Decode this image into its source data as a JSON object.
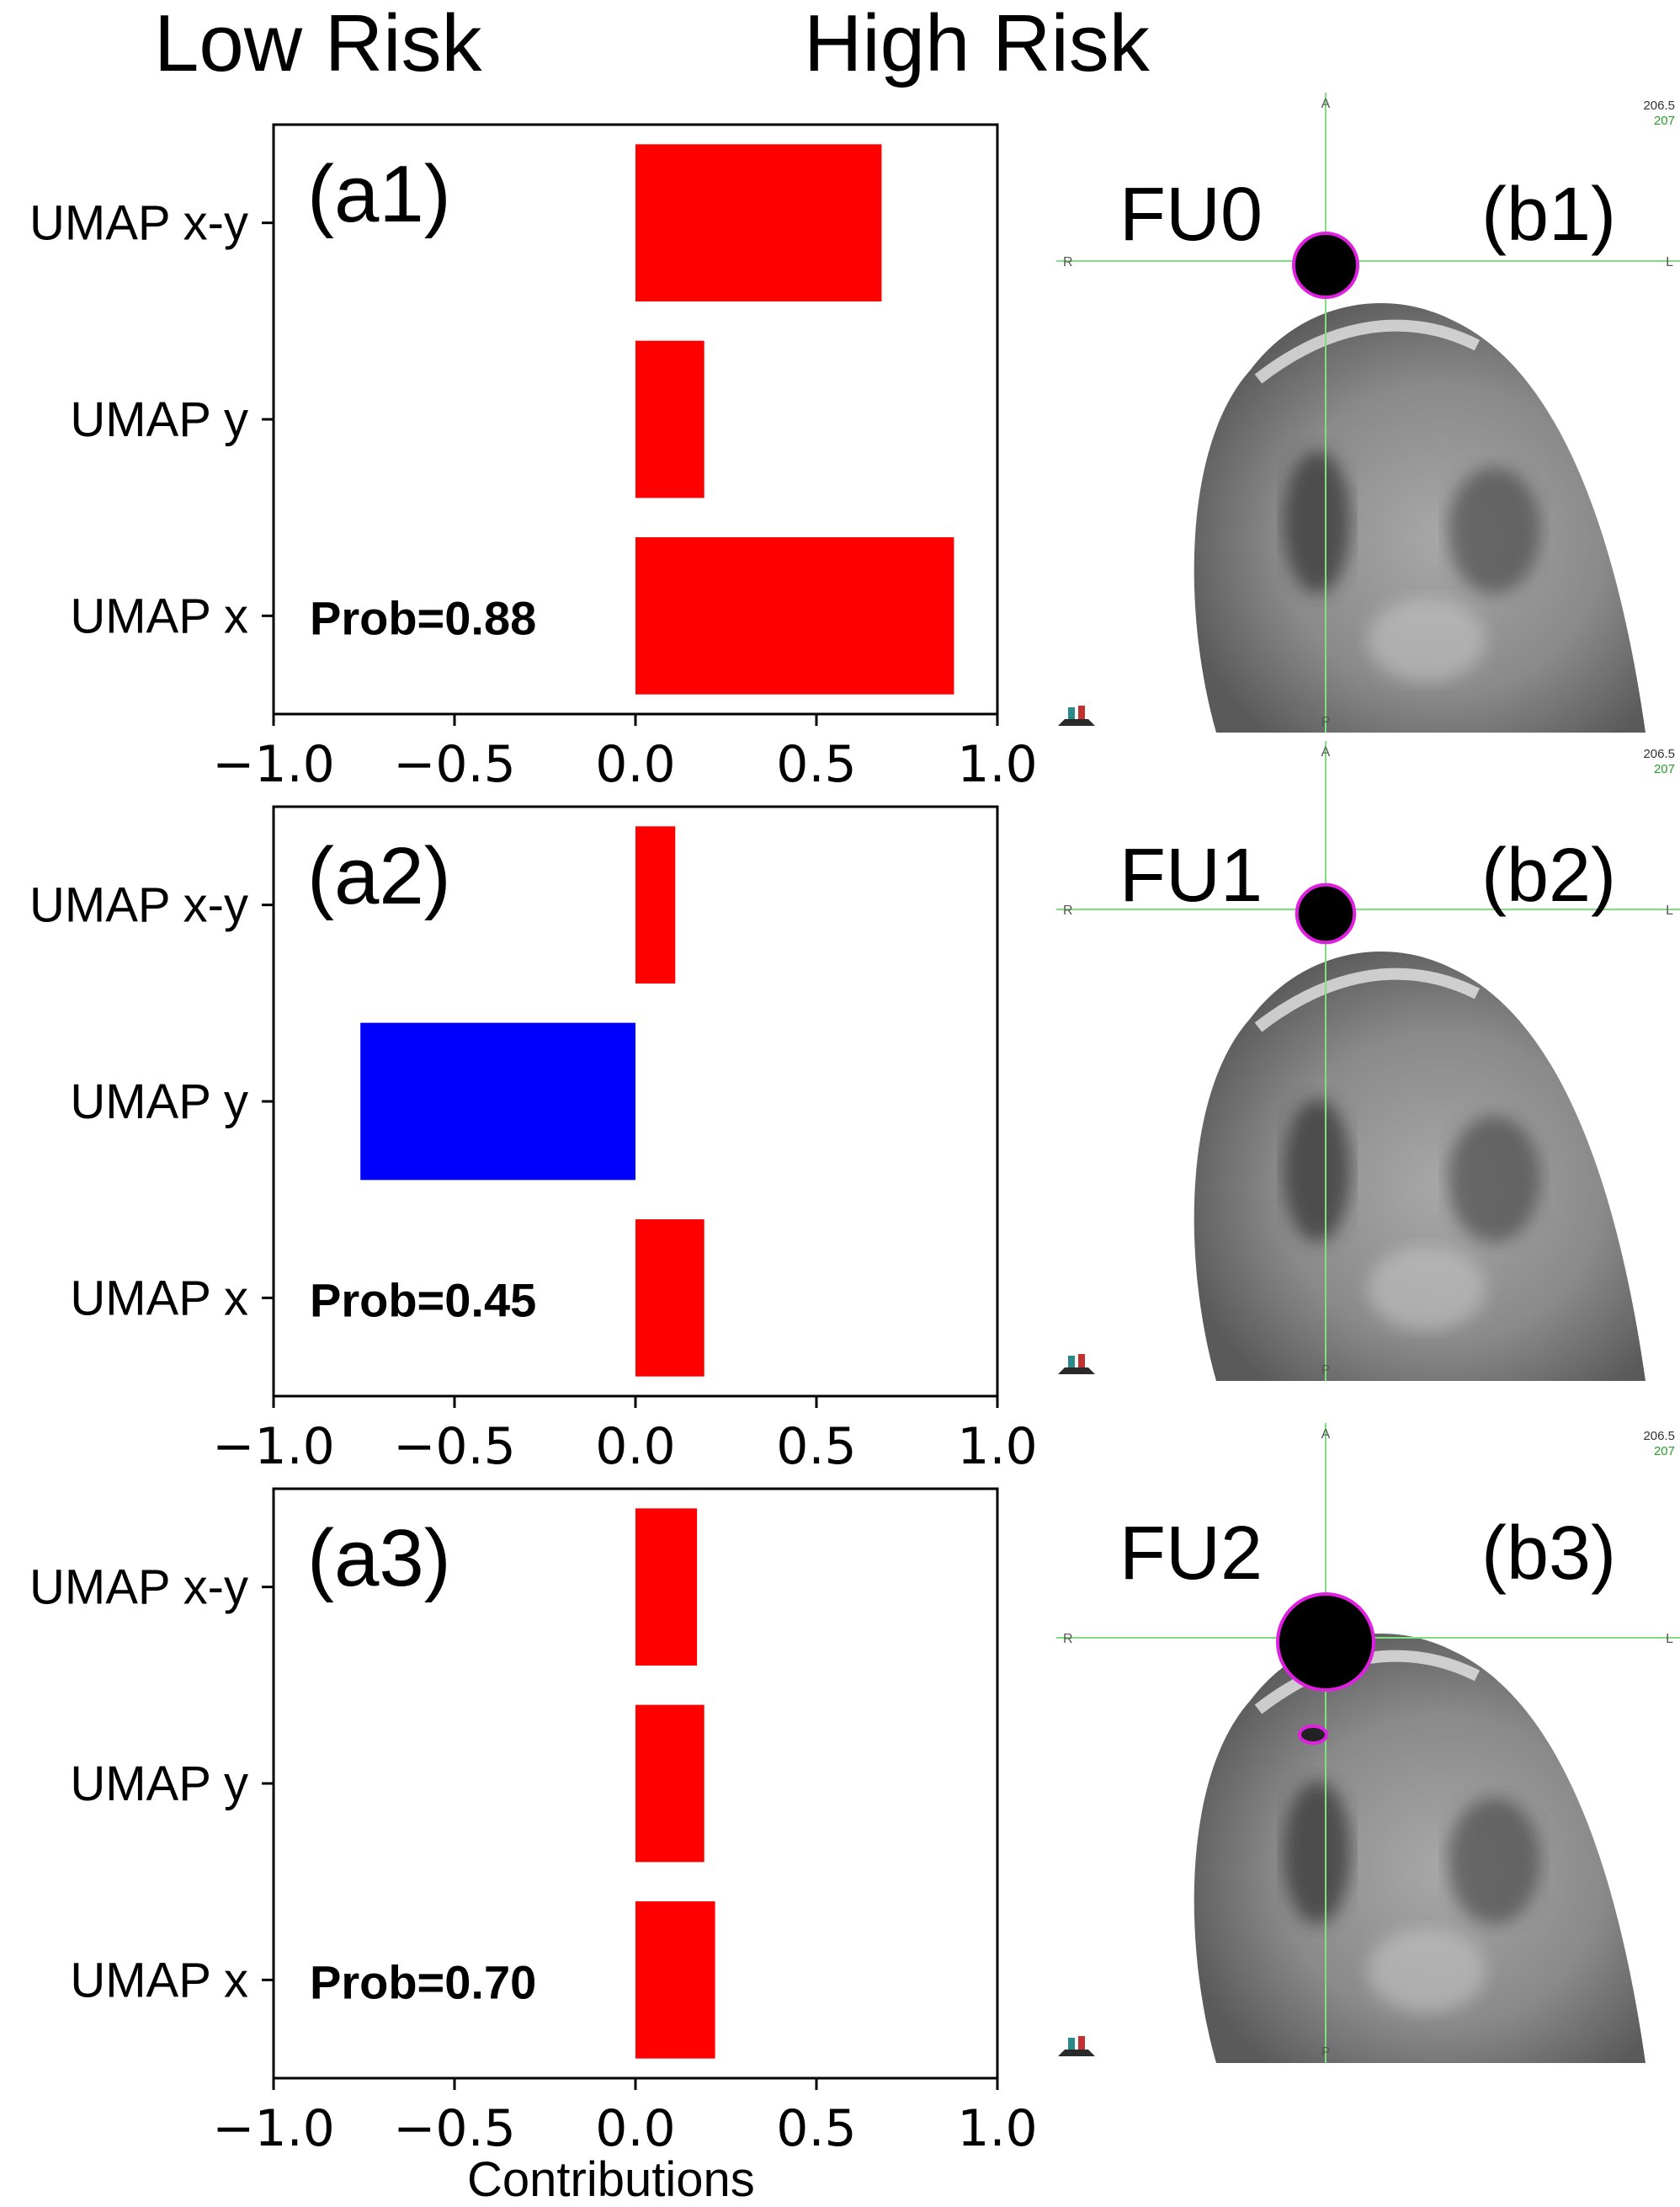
{
  "header": {
    "low_risk": "Low Risk",
    "high_risk": "High Risk"
  },
  "x_axis_label": "Contributions",
  "colors": {
    "positive": "#ff0000",
    "negative": "#0000ff",
    "contour": "#e020e0",
    "crosshair": "#7ee07e"
  },
  "chart_data": [
    {
      "type": "bar",
      "orientation": "horizontal",
      "panel_label": "(a1)",
      "categories": [
        "UMAP x-y",
        "UMAP y",
        "UMAP x"
      ],
      "values": [
        0.68,
        0.19,
        0.88
      ],
      "annotation": "Prob=0.88",
      "xlim": [
        -1.0,
        1.0
      ],
      "xticks": [
        "−1.0",
        "−0.5",
        "0.0",
        "0.5",
        "1.0"
      ]
    },
    {
      "type": "bar",
      "orientation": "horizontal",
      "panel_label": "(a2)",
      "categories": [
        "UMAP x-y",
        "UMAP y",
        "UMAP x"
      ],
      "values": [
        0.11,
        -0.76,
        0.19
      ],
      "annotation": "Prob=0.45",
      "xlim": [
        -1.0,
        1.0
      ],
      "xticks": [
        "−1.0",
        "−0.5",
        "0.0",
        "0.5",
        "1.0"
      ]
    },
    {
      "type": "bar",
      "orientation": "horizontal",
      "panel_label": "(a3)",
      "categories": [
        "UMAP x-y",
        "UMAP y",
        "UMAP x"
      ],
      "values": [
        0.17,
        0.19,
        0.22
      ],
      "annotation": "Prob=0.70",
      "xlim": [
        -1.0,
        1.0
      ],
      "xticks": [
        "−1.0",
        "−0.5",
        "0.0",
        "0.5",
        "1.0"
      ]
    }
  ],
  "scans": [
    {
      "fu_label": "FU0",
      "panel_label": "(b1)",
      "lesion_size": 1.0,
      "extra_spot": false
    },
    {
      "fu_label": "FU1",
      "panel_label": "(b2)",
      "lesion_size": 0.9,
      "extra_spot": false
    },
    {
      "fu_label": "FU2",
      "panel_label": "(b3)",
      "lesion_size": 1.5,
      "extra_spot": true
    }
  ],
  "scan_overlay": {
    "top": "A",
    "bottom": "P",
    "left": "R",
    "right": "L",
    "value_top": "206.5",
    "value_bottom": "207"
  }
}
